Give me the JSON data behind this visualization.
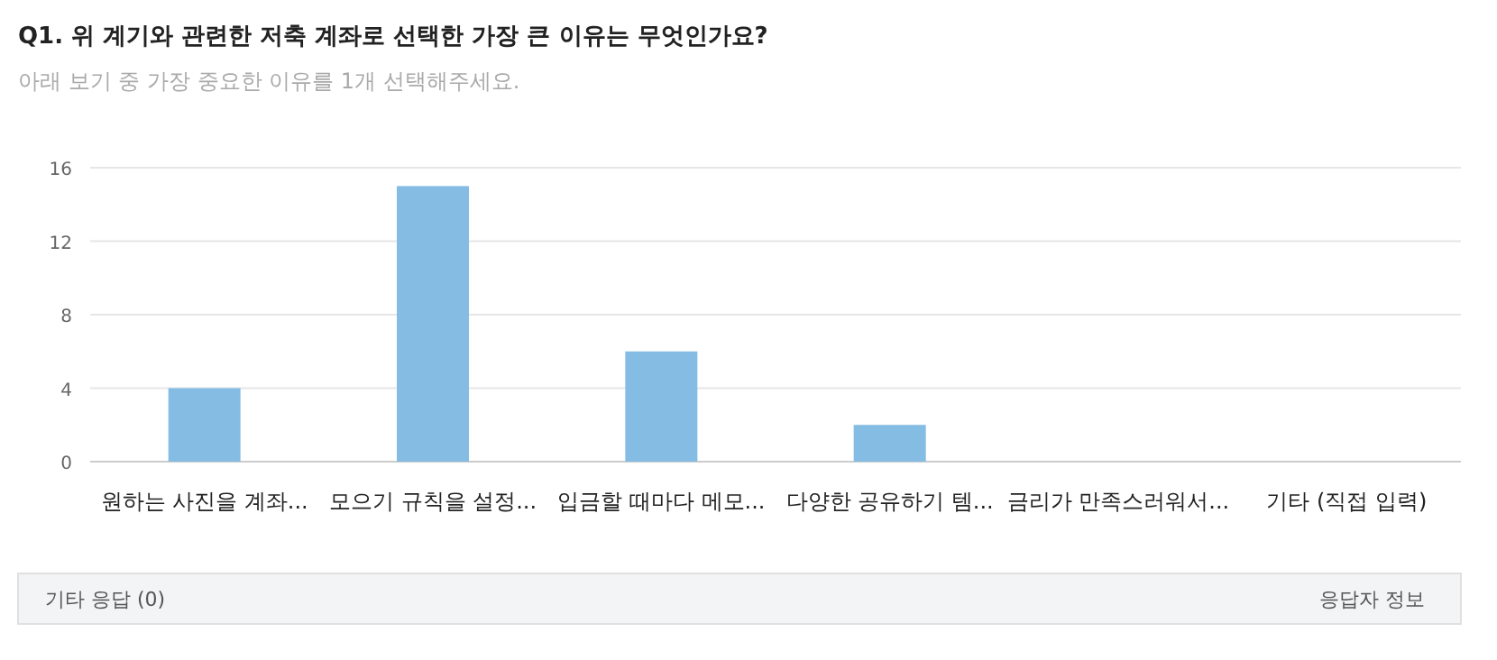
{
  "chart_data": {
    "type": "bar",
    "title": "Q1. 위 계기와 관련한 저축 계좌로 선택한 가장 큰 이유는 무엇인가요?",
    "subtitle": "아래 보기 중 가장 중요한 이유를 1개 선택해주세요.",
    "categories": [
      "원하는 사진을 계좌...",
      "모으기 규칙을 설정...",
      "입금할 때마다 메모...",
      "다양한 공유하기 템...",
      "금리가 만족스러워서...",
      "기타 (직접 입력)"
    ],
    "values": [
      4,
      15,
      6,
      2,
      0,
      0
    ],
    "color": "#85bce4",
    "ylim": [
      0,
      16
    ],
    "yticks": [
      0,
      4,
      8,
      12,
      16
    ],
    "grid": "y",
    "annotations": [
      "기타 응답 (0)",
      "응답자 정보"
    ]
  }
}
